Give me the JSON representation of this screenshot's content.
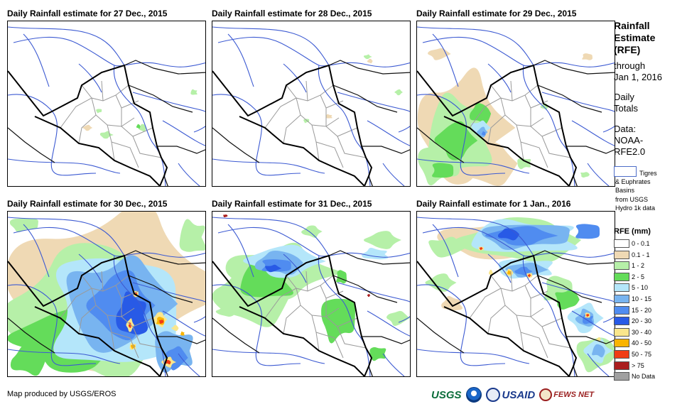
{
  "panels": [
    {
      "id": "p1",
      "title": "Daily Rainfall estimate for 27 Dec., 2015"
    },
    {
      "id": "p2",
      "title": "Daily Rainfall estimate for 28 Dec., 2015"
    },
    {
      "id": "p3",
      "title": "Daily Rainfall estimate for 29 Dec., 2015"
    },
    {
      "id": "p4",
      "title": "Daily Rainfall estimate for 30 Dec., 2015"
    },
    {
      "id": "p5",
      "title": "Daily Rainfall estimate for 31 Dec., 2015"
    },
    {
      "id": "p6",
      "title": "Daily Rainfall estimate for 1 Jan., 2016"
    }
  ],
  "legend": {
    "title": "Rainfall\nEstimate\n(RFE)",
    "through": "through\nJan 1, 2016",
    "totals": "Daily\nTotals",
    "data_source": "Data:\nNOAA-\nRFE2.0",
    "basin_label": "Tigres",
    "basin_text_2": "& Euphrates",
    "basin_text_3": "Basins",
    "basin_text_4": "from USGS",
    "basin_text_5": "Hydro 1k data",
    "rfe_title": "RFE (mm)",
    "classes": [
      {
        "label": "0 - 0.1",
        "color": "#ffffff"
      },
      {
        "label": "0.1 - 1",
        "color": "#efd9b4"
      },
      {
        "label": "1 - 2",
        "color": "#b6f0a8"
      },
      {
        "label": "2 - 5",
        "color": "#64dc5a"
      },
      {
        "label": "5 - 10",
        "color": "#b4e6fa"
      },
      {
        "label": "10 - 15",
        "color": "#78b4f0"
      },
      {
        "label": "15 - 20",
        "color": "#508cf0"
      },
      {
        "label": "20 - 30",
        "color": "#285ae6"
      },
      {
        "label": "30 - 40",
        "color": "#fae68c"
      },
      {
        "label": "40 - 50",
        "color": "#fab400"
      },
      {
        "label": "50 - 75",
        "color": "#f03c14"
      },
      {
        "label": "> 75",
        "color": "#aa1e1e"
      },
      {
        "label": "No Data",
        "color": "#a0a0a0"
      }
    ]
  },
  "footer": {
    "credit": "Map produced by USGS/EROS",
    "logo_usgs": "USGS",
    "logo_usaid": "USAID",
    "logo_fews": "FEWS NET"
  }
}
